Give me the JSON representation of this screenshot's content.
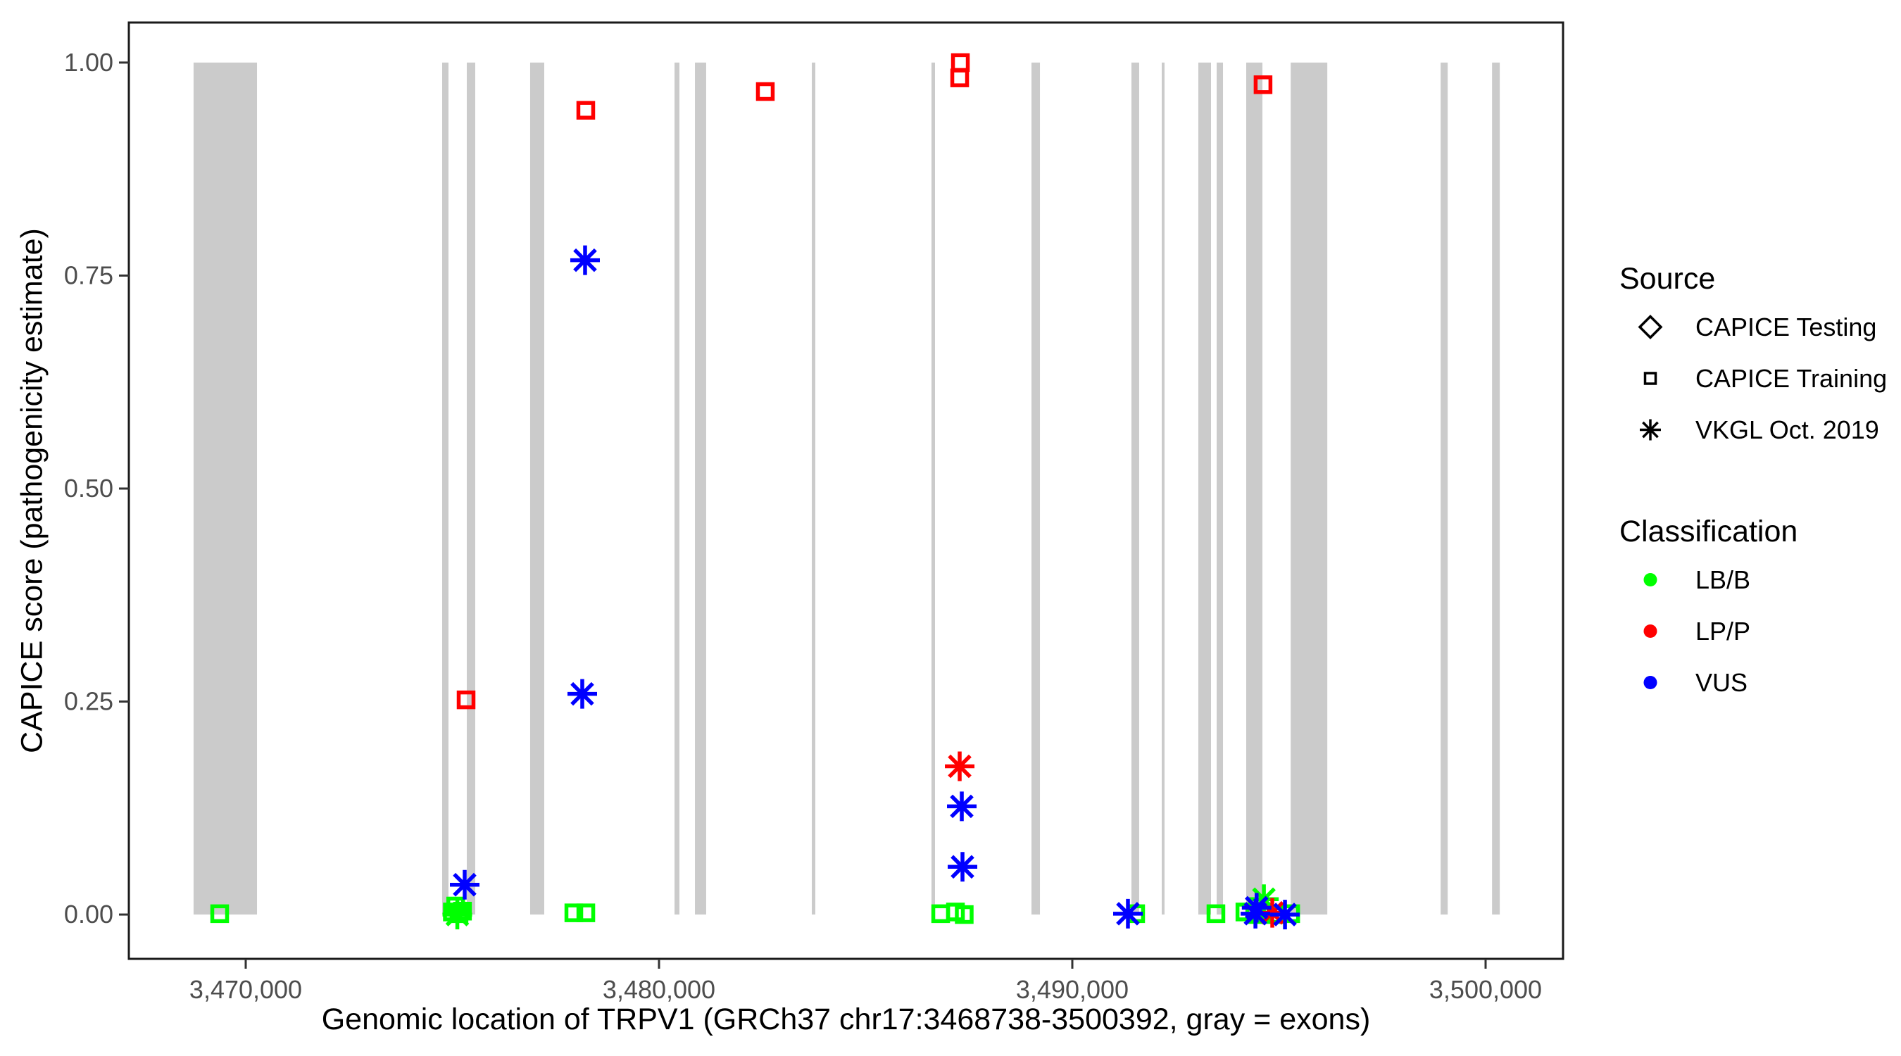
{
  "chart_data": {
    "type": "scatter",
    "xlabel": "Genomic location of TRPV1 (GRCh37 chr17:3468738-3500392, gray = exons)",
    "ylabel": "CAPICE score (pathogenicity estimate)",
    "x_axis": {
      "range": [
        3467172,
        3501874
      ],
      "ticks": [
        3470000,
        3480000,
        3490000,
        3500000
      ],
      "labels": [
        "3,470,000",
        "3,480,000",
        "3,490,000",
        "3,500,000"
      ]
    },
    "y_axis": {
      "range": [
        -0.052,
        1.047
      ],
      "ticks": [
        0,
        0.25,
        0.5,
        0.75,
        1
      ],
      "labels": [
        "0.00",
        "0.25",
        "0.50",
        "0.75",
        "1.00"
      ]
    },
    "grid": "off",
    "exons": [
      [
        3468738,
        3470273
      ],
      [
        3474753,
        3474906
      ],
      [
        3475349,
        3475553
      ],
      [
        3476882,
        3477223
      ],
      [
        3480375,
        3480494
      ],
      [
        3480869,
        3481141
      ],
      [
        3483697,
        3483782
      ],
      [
        3486593,
        3486678
      ],
      [
        3489012,
        3489217
      ],
      [
        3491431,
        3491618
      ],
      [
        3492164,
        3492215
      ],
      [
        3493050,
        3493356
      ],
      [
        3493493,
        3493646
      ],
      [
        3494208,
        3494600
      ],
      [
        3495284,
        3496170
      ],
      [
        3498912,
        3499083
      ],
      [
        3500156,
        3500343
      ]
    ],
    "points": [
      {
        "pos": 3469370,
        "score": 0.001,
        "source": "CAPICE Training",
        "classification": "LB/B"
      },
      {
        "pos": 3475000,
        "score": 0.003,
        "source": "CAPICE Training",
        "classification": "LB/B"
      },
      {
        "pos": 3475080,
        "score": 0.01,
        "source": "CAPICE Training",
        "classification": "LB/B"
      },
      {
        "pos": 3475160,
        "score": 0.001,
        "source": "CAPICE Training",
        "classification": "LB/B"
      },
      {
        "pos": 3475245,
        "score": 0.004,
        "source": "CAPICE Training",
        "classification": "LB/B"
      },
      {
        "pos": 3477939,
        "score": 0.002,
        "source": "CAPICE Training",
        "classification": "LB/B"
      },
      {
        "pos": 3478229,
        "score": 0.002,
        "source": "CAPICE Training",
        "classification": "LB/B"
      },
      {
        "pos": 3486815,
        "score": 0.001,
        "source": "CAPICE Training",
        "classification": "LB/B"
      },
      {
        "pos": 3487173,
        "score": 0.003,
        "source": "CAPICE Training",
        "classification": "LB/B"
      },
      {
        "pos": 3487385,
        "score": 0.0,
        "source": "CAPICE Training",
        "classification": "LB/B"
      },
      {
        "pos": 3491533,
        "score": 0.001,
        "source": "CAPICE Training",
        "classification": "LB/B"
      },
      {
        "pos": 3493475,
        "score": 0.001,
        "source": "CAPICE Training",
        "classification": "LB/B"
      },
      {
        "pos": 3494176,
        "score": 0.003,
        "source": "CAPICE Training",
        "classification": "LB/B"
      },
      {
        "pos": 3494415,
        "score": 0.0,
        "source": "CAPICE Training",
        "classification": "LB/B"
      },
      {
        "pos": 3494653,
        "score": 0.002,
        "source": "CAPICE Training",
        "classification": "LB/B"
      },
      {
        "pos": 3494926,
        "score": 0.0,
        "source": "CAPICE Training",
        "classification": "LB/B"
      },
      {
        "pos": 3495284,
        "score": 0.001,
        "source": "CAPICE Training",
        "classification": "LB/B"
      },
      {
        "pos": 3475332,
        "score": 0.252,
        "source": "CAPICE Training",
        "classification": "LP/P"
      },
      {
        "pos": 3478228,
        "score": 0.944,
        "source": "CAPICE Training",
        "classification": "LP/P"
      },
      {
        "pos": 3482572,
        "score": 0.966,
        "source": "CAPICE Training",
        "classification": "LP/P"
      },
      {
        "pos": 3487292,
        "score": 1.0,
        "source": "CAPICE Training",
        "classification": "LP/P"
      },
      {
        "pos": 3487275,
        "score": 0.982,
        "source": "CAPICE Training",
        "classification": "LP/P"
      },
      {
        "pos": 3494615,
        "score": 0.974,
        "source": "CAPICE Training",
        "classification": "LP/P"
      },
      {
        "pos": 3475120,
        "score": 0.0,
        "source": "VKGL Oct. 2019",
        "classification": "LB/B"
      },
      {
        "pos": 3494636,
        "score": 0.018,
        "source": "VKGL Oct. 2019",
        "classification": "LB/B"
      },
      {
        "pos": 3487275,
        "score": 0.174,
        "source": "VKGL Oct. 2019",
        "classification": "LP/P"
      },
      {
        "pos": 3494839,
        "score": 0.002,
        "source": "VKGL Oct. 2019",
        "classification": "LP/P"
      },
      {
        "pos": 3475298,
        "score": 0.035,
        "source": "VKGL Oct. 2019",
        "classification": "VUS"
      },
      {
        "pos": 3478143,
        "score": 0.259,
        "source": "VKGL Oct. 2019",
        "classification": "VUS"
      },
      {
        "pos": 3478211,
        "score": 0.768,
        "source": "VKGL Oct. 2019",
        "classification": "VUS"
      },
      {
        "pos": 3487326,
        "score": 0.127,
        "source": "VKGL Oct. 2019",
        "classification": "VUS"
      },
      {
        "pos": 3487343,
        "score": 0.056,
        "source": "VKGL Oct. 2019",
        "classification": "VUS"
      },
      {
        "pos": 3491346,
        "score": 0.001,
        "source": "VKGL Oct. 2019",
        "classification": "VUS"
      },
      {
        "pos": 3494460,
        "score": 0.008,
        "source": "VKGL Oct. 2019",
        "classification": "VUS"
      },
      {
        "pos": 3494431,
        "score": 0.001,
        "source": "VKGL Oct. 2019",
        "classification": "VUS"
      },
      {
        "pos": 3495146,
        "score": 0.0,
        "source": "VKGL Oct. 2019",
        "classification": "VUS"
      }
    ],
    "legend": {
      "source": {
        "title": "Source",
        "items": [
          {
            "label": "CAPICE Testing",
            "shape": "diamond"
          },
          {
            "label": "CAPICE Training",
            "shape": "square"
          },
          {
            "label": "VKGL Oct. 2019",
            "shape": "asterisk"
          }
        ]
      },
      "classification": {
        "title": "Classification",
        "items": [
          {
            "label": "LB/B",
            "color": "#00FF00"
          },
          {
            "label": "LP/P",
            "color": "#FF0000"
          },
          {
            "label": "VUS",
            "color": "#0000FF"
          }
        ]
      }
    },
    "colors": {
      "LB/B": "#00FF00",
      "LP/P": "#FF0000",
      "VUS": "#0000FF",
      "exon": "#CBCBCB",
      "panel_border": "#1A1A1A",
      "tick": "#333333",
      "tick_label": "#4D4D4D"
    }
  }
}
